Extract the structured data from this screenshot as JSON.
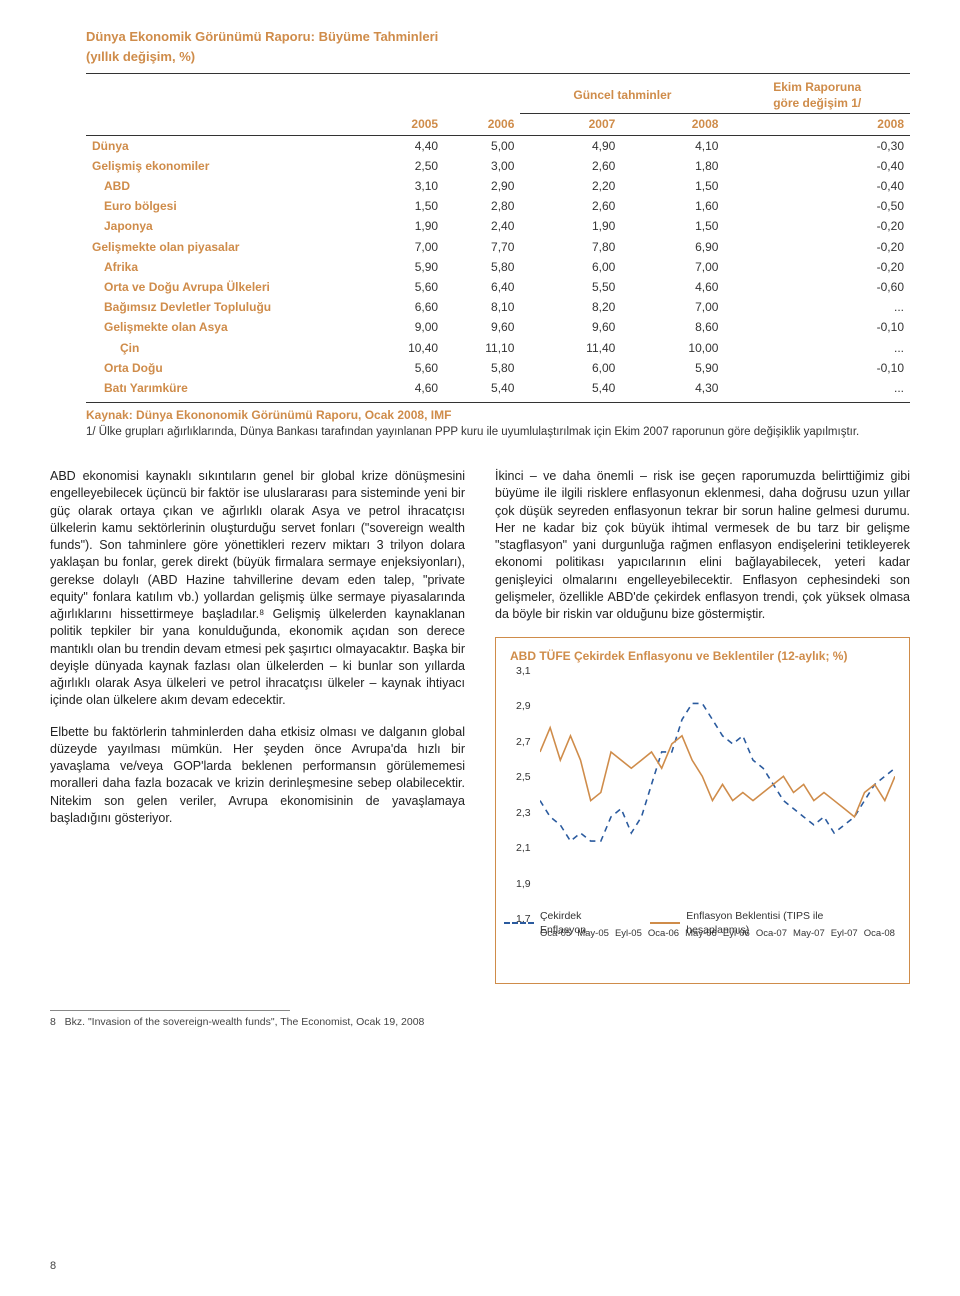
{
  "table": {
    "title": "Dünya Ekonomik Görünümü Raporu: Büyüme Tahminleri",
    "subtitle": "(yıllık değişim, %)",
    "super_headers": {
      "mid": "Güncel tahminler",
      "right": "Ekim Raporuna\ngöre değişim 1/"
    },
    "year_headers": [
      "",
      "2005",
      "2006",
      "2007",
      "2008",
      "2008"
    ],
    "rows": [
      {
        "label": "Dünya",
        "indent": 0,
        "v": [
          "4,40",
          "5,00",
          "4,90",
          "4,10",
          "-0,30"
        ]
      },
      {
        "label": "Gelişmiş ekonomiler",
        "indent": 0,
        "v": [
          "2,50",
          "3,00",
          "2,60",
          "1,80",
          "-0,40"
        ]
      },
      {
        "label": "ABD",
        "indent": 1,
        "v": [
          "3,10",
          "2,90",
          "2,20",
          "1,50",
          "-0,40"
        ]
      },
      {
        "label": "Euro bölgesi",
        "indent": 1,
        "v": [
          "1,50",
          "2,80",
          "2,60",
          "1,60",
          "-0,50"
        ]
      },
      {
        "label": "Japonya",
        "indent": 1,
        "v": [
          "1,90",
          "2,40",
          "1,90",
          "1,50",
          "-0,20"
        ]
      },
      {
        "label": "Gelişmekte olan piyasalar",
        "indent": 0,
        "v": [
          "7,00",
          "7,70",
          "7,80",
          "6,90",
          "-0,20"
        ]
      },
      {
        "label": "Afrika",
        "indent": 1,
        "v": [
          "5,90",
          "5,80",
          "6,00",
          "7,00",
          "-0,20"
        ]
      },
      {
        "label": "Orta ve Doğu Avrupa Ülkeleri",
        "indent": 1,
        "v": [
          "5,60",
          "6,40",
          "5,50",
          "4,60",
          "-0,60"
        ]
      },
      {
        "label": "Bağımsız Devletler Topluluğu",
        "indent": 1,
        "v": [
          "6,60",
          "8,10",
          "8,20",
          "7,00",
          "..."
        ]
      },
      {
        "label": "Gelişmekte olan Asya",
        "indent": 1,
        "v": [
          "9,00",
          "9,60",
          "9,60",
          "8,60",
          "-0,10"
        ]
      },
      {
        "label": "Çin",
        "indent": 2,
        "v": [
          "10,40",
          "11,10",
          "11,40",
          "10,00",
          "..."
        ]
      },
      {
        "label": "Orta Doğu",
        "indent": 1,
        "v": [
          "5,60",
          "5,80",
          "6,00",
          "5,90",
          "-0,10"
        ]
      },
      {
        "label": "Batı Yarımküre",
        "indent": 1,
        "v": [
          "4,60",
          "5,40",
          "5,40",
          "4,30",
          "..."
        ]
      }
    ],
    "source": "Kaynak: Dünya Ekononomik Görünümü Raporu, Ocak 2008, IMF",
    "note": "1/ Ülke grupları ağırlıklarında, Dünya Bankası tarafından yayınlanan PPP kuru ile uyumlulaştırılmak için Ekim 2007 raporunun göre değişiklik yapılmıştır."
  },
  "body": {
    "left": [
      "ABD ekonomisi kaynaklı sıkıntıların genel bir global krize dönüşmesini engelleyebilecek üçüncü bir faktör ise uluslararası para sisteminde yeni bir güç olarak ortaya çıkan ve ağırlıklı olarak Asya ve petrol ihracatçısı ülkelerin kamu sektörlerinin oluşturduğu servet fonları (\"sovereign wealth funds\"). Son tahminlere göre yönettikleri rezerv miktarı 3 trilyon dolara yaklaşan bu fonlar, gerek direkt (büyük firmalara sermaye enjeksiyonları), gerekse dolaylı (ABD Hazine tahvillerine devam eden talep, \"private equity\" fonlara katılım vb.) yollardan gelişmiş ülke sermaye piyasalarında ağırlıklarını hissettirmeye başladılar.⁸ Gelişmiş ülkelerden kaynaklanan politik tepkiler bir yana konulduğunda, ekonomik açıdan son derece mantıklı olan bu trendin devam etmesi pek şaşırtıcı olmayacaktır. Başka bir deyişle dünyada kaynak fazlası olan ülkelerden – ki bunlar son yıllarda ağırlıklı olarak Asya ülkeleri ve petrol ihracatçısı ülkeler – kaynak ihtiyacı içinde olan ülkelere akım devam edecektir.",
      "Elbette bu faktörlerin tahminlerden daha etkisiz olması ve dalganın global düzeyde yayılması mümkün. Her şeyden önce Avrupa'da hızlı bir yavaşlama ve/veya GOP'larda beklenen performansın görülememesi moralleri daha fazla bozacak ve krizin derinleşmesine sebep olabilecektir. Nitekim son gelen veriler, Avrupa ekonomisinin de yavaşlamaya başladığını gösteriyor."
    ],
    "right": [
      "İkinci – ve daha önemli – risk ise geçen raporumuzda belirttiğimiz gibi büyüme ile ilgili risklere enflasyonun eklenmesi, daha doğrusu uzun yıllar çok düşük seyreden enflasyonun tekrar bir sorun haline gelmesi durumu. Her ne kadar biz çok büyük ihtimal vermesek de bu tarz bir gelişme \"stagflasyon\" yani durgunluğa rağmen enflasyon endişelerini tetikleyerek ekonomi politikası yapıcılarının elini bağlayabilecek, yeteri kadar genişleyici olmalarını engelleyebilecektir. Enflasyon cephesindeki son gelişmeler, özellikle ABD'de çekirdek enflasyon trendi, çok yüksek olmasa da böyle bir riskin var olduğunu bize göstermiştir."
    ]
  },
  "chart": {
    "title": "ABD TÜFE Çekirdek Enflasyonu ve Beklentiler (12-aylık; %)",
    "type": "line",
    "ymin": 1.7,
    "ymax": 3.1,
    "ystep": 0.2,
    "ylabels": [
      "3,1",
      "2,9",
      "2,7",
      "2,5",
      "2,3",
      "2,1",
      "1,9",
      "1,7"
    ],
    "xlabels": [
      "Oca-05",
      "May-05",
      "Eyl-05",
      "Oca-06",
      "May-06",
      "Eyl-06",
      "Oca-07",
      "May-07",
      "Eyl-07",
      "Oca-08"
    ],
    "series": [
      {
        "name": "Çekirdek Enflasyon",
        "color": "#2a5a9e",
        "dash": "6 5",
        "width": 1.6,
        "y": [
          2.3,
          2.2,
          2.15,
          2.05,
          2.1,
          2.05,
          2.05,
          2.2,
          2.25,
          2.1,
          2.2,
          2.4,
          2.6,
          2.6,
          2.8,
          2.9,
          2.9,
          2.8,
          2.7,
          2.65,
          2.7,
          2.55,
          2.5,
          2.4,
          2.3,
          2.25,
          2.2,
          2.15,
          2.2,
          2.1,
          2.15,
          2.2,
          2.3,
          2.4,
          2.45,
          2.5
        ]
      },
      {
        "name": "Enflasyon Beklentisi (TIPS ile hesaplanmış)",
        "color": "#cf8c4a",
        "dash": "",
        "width": 1.6,
        "y": [
          2.6,
          2.75,
          2.55,
          2.7,
          2.55,
          2.3,
          2.35,
          2.6,
          2.55,
          2.5,
          2.55,
          2.6,
          2.5,
          2.65,
          2.7,
          2.55,
          2.45,
          2.3,
          2.4,
          2.3,
          2.35,
          2.3,
          2.35,
          2.4,
          2.45,
          2.35,
          2.4,
          2.3,
          2.35,
          2.3,
          2.25,
          2.2,
          2.35,
          2.4,
          2.3,
          2.45
        ]
      }
    ],
    "background": "#ffffff",
    "axis_color": "#333333",
    "label_fontsize": 10.5
  },
  "footnote": {
    "num": "8",
    "text": "Bkz. \"Invasion of the sovereign-wealth funds\", The Economist, Ocak 19, 2008"
  },
  "page_number": "8"
}
